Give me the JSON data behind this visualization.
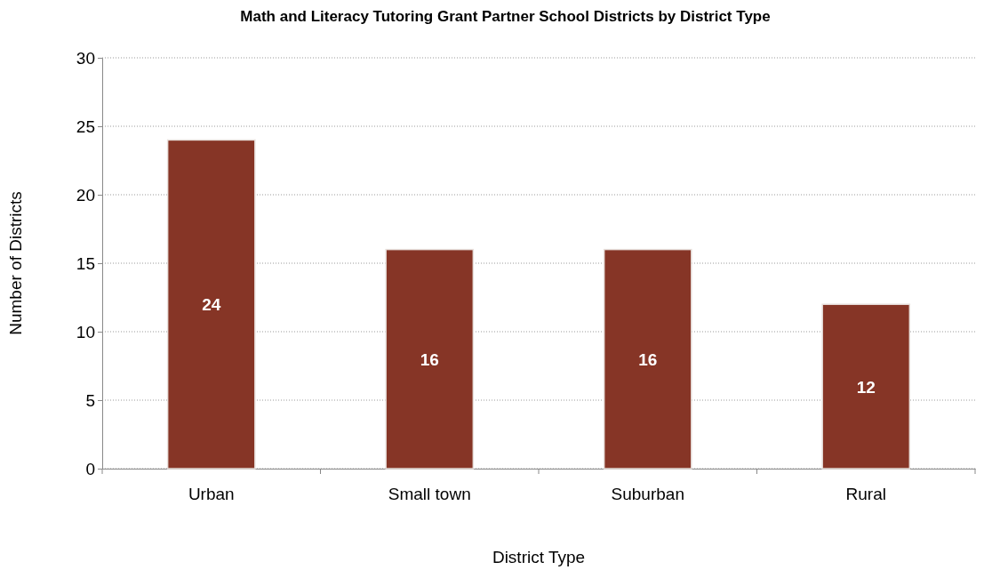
{
  "chart_data": {
    "type": "bar",
    "title": "Math and Literacy Tutoring Grant Partner School Districts by District Type",
    "xlabel": "District Type",
    "ylabel": "Number of Districts",
    "categories": [
      "Urban",
      "Small town",
      "Suburban",
      "Rural"
    ],
    "values": [
      24,
      16,
      16,
      12
    ],
    "color": "#863526",
    "ylim": [
      0,
      30
    ],
    "yticks": [
      0,
      5,
      10,
      15,
      20,
      25,
      30
    ],
    "grid": "y",
    "data_labels": true
  }
}
